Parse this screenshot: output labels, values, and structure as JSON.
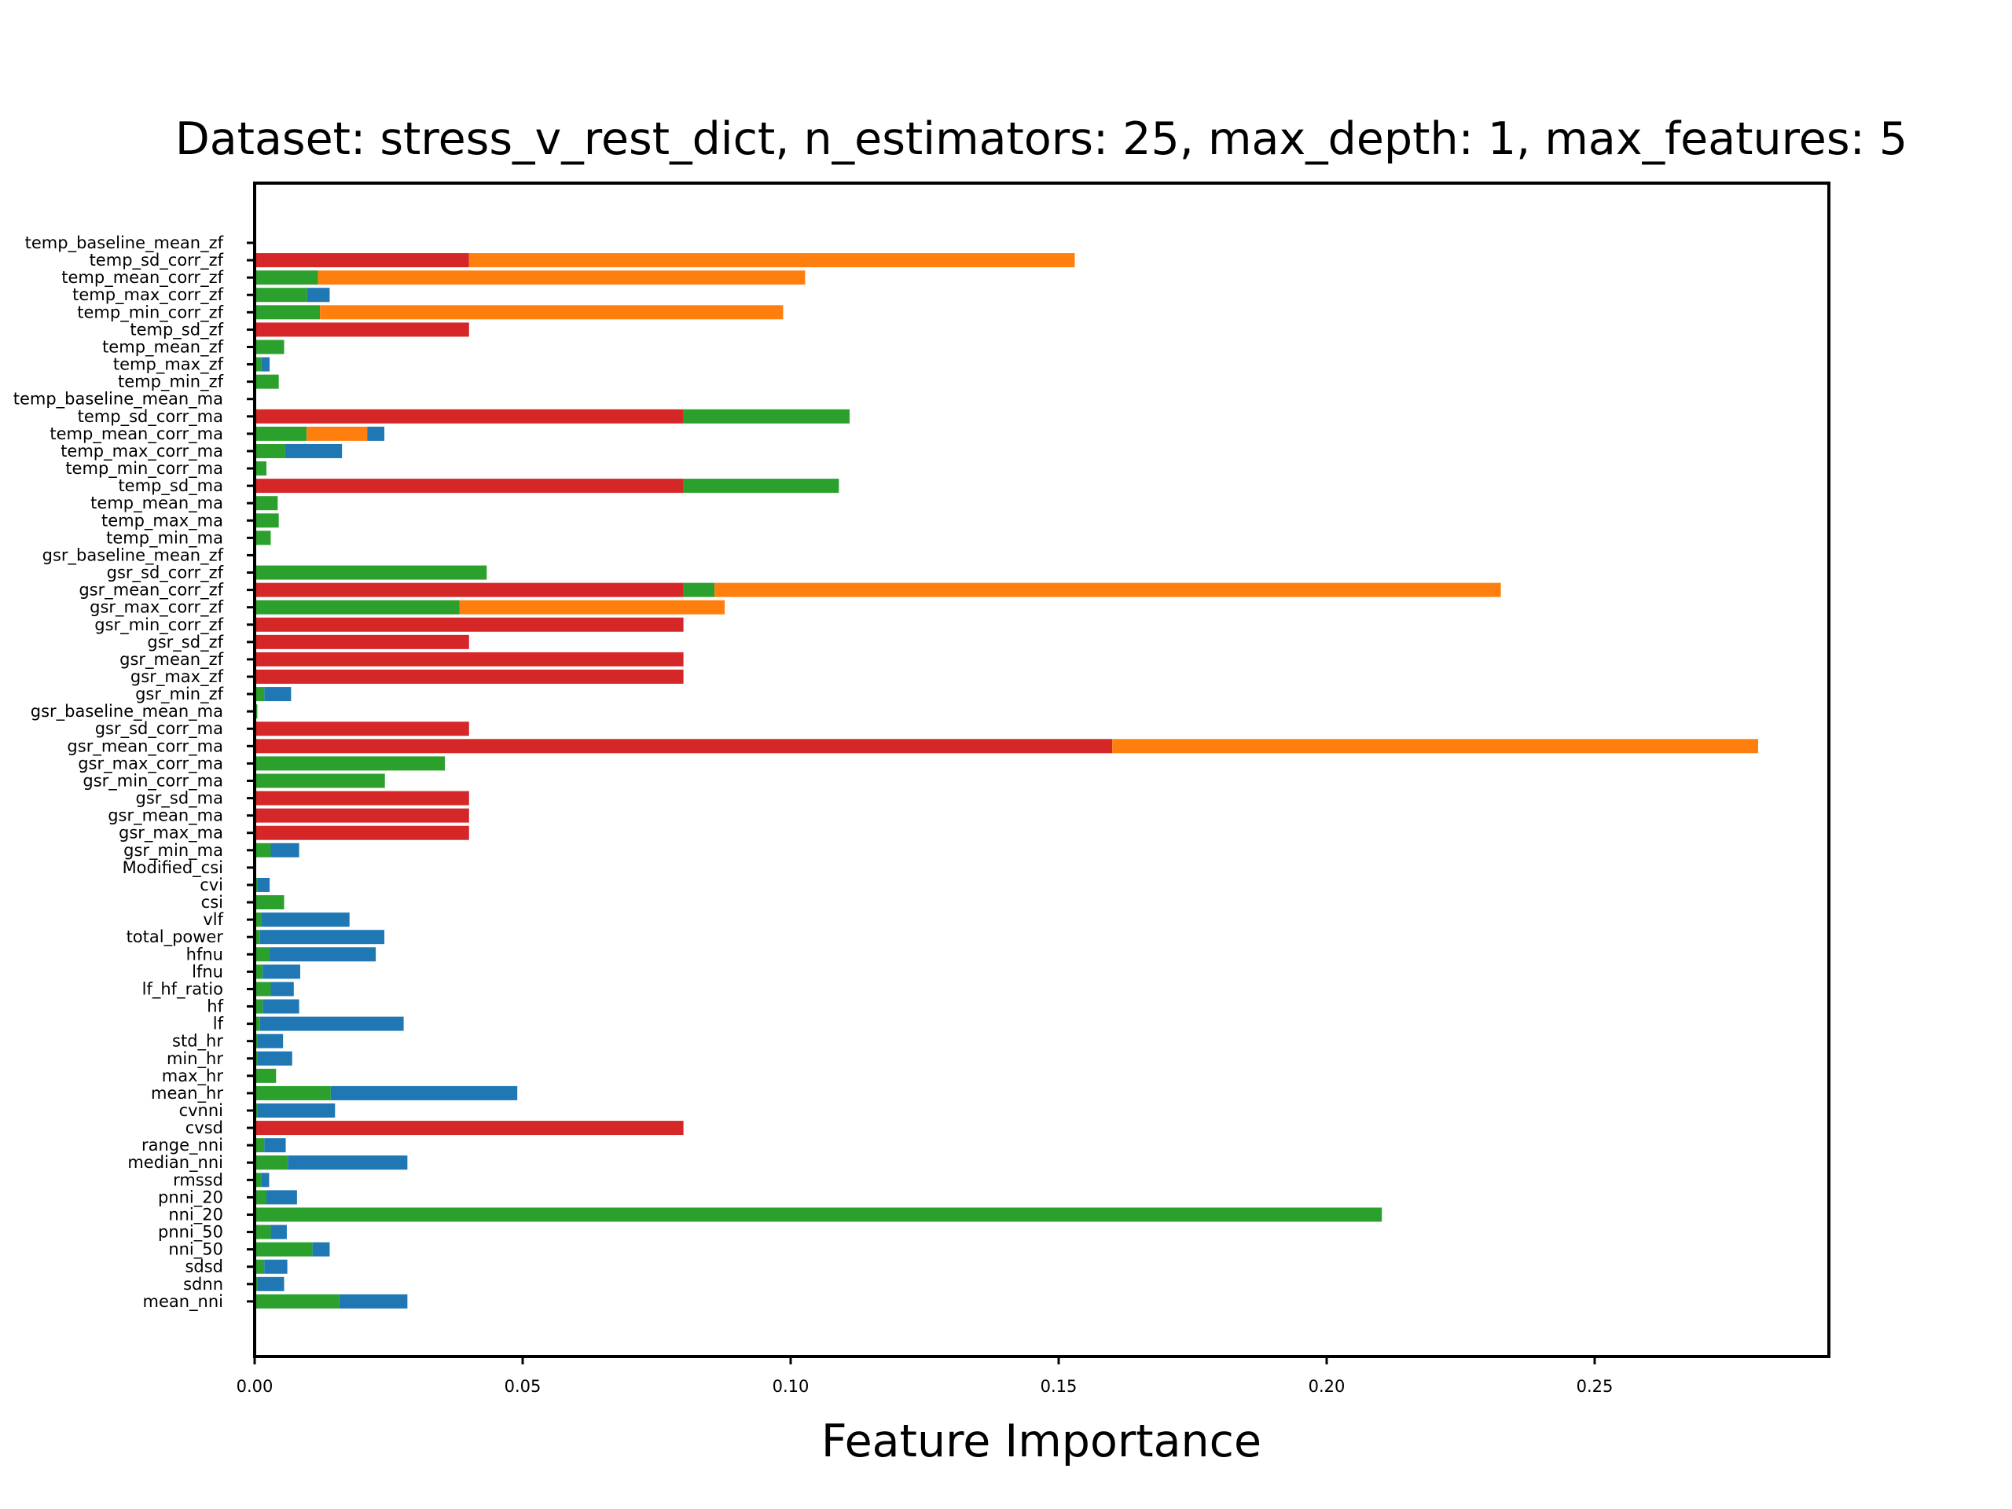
{
  "chart_data": {
    "type": "bar",
    "orientation": "horizontal",
    "stacked": true,
    "title": "Dataset: stress_v_rest_dict, n_estimators: 25, max_depth: 1, max_features: 5",
    "xlabel": "Feature Importance",
    "ylabel": "",
    "xlim": [
      0,
      0.294
    ],
    "xticks": [
      "0.00",
      "0.05",
      "0.10",
      "0.15",
      "0.20",
      "0.25"
    ],
    "grid": false,
    "colors": {
      "red": "#d62728",
      "green": "#2ca02c",
      "blue": "#1f77b4",
      "orange": "#ff7f0e"
    },
    "categories": [
      "temp_baseline_mean_zf",
      "temp_sd_corr_zf",
      "temp_mean_corr_zf",
      "temp_max_corr_zf",
      "temp_min_corr_zf",
      "temp_sd_zf",
      "temp_mean_zf",
      "temp_max_zf",
      "temp_min_zf",
      "temp_baseline_mean_ma",
      "temp_sd_corr_ma",
      "temp_mean_corr_ma",
      "temp_max_corr_ma",
      "temp_min_corr_ma",
      "temp_sd_ma",
      "temp_mean_ma",
      "temp_max_ma",
      "temp_min_ma",
      "gsr_baseline_mean_zf",
      "gsr_sd_corr_zf",
      "gsr_mean_corr_zf",
      "gsr_max_corr_zf",
      "gsr_min_corr_zf",
      "gsr_sd_zf",
      "gsr_mean_zf",
      "gsr_max_zf",
      "gsr_min_zf",
      "gsr_baseline_mean_ma",
      "gsr_sd_corr_ma",
      "gsr_mean_corr_ma",
      "gsr_max_corr_ma",
      "gsr_min_corr_ma",
      "gsr_sd_ma",
      "gsr_mean_ma",
      "gsr_max_ma",
      "gsr_min_ma",
      "Modified_csi",
      "cvi",
      "csi",
      "vlf",
      "total_power",
      "hfnu",
      "lfnu",
      "lf_hf_ratio",
      "hf",
      "lf",
      "std_hr",
      "min_hr",
      "max_hr",
      "mean_hr",
      "cvnni",
      "cvsd",
      "range_nni",
      "median_nni",
      "rmssd",
      "pnni_20",
      "nni_20",
      "pnni_50",
      "nni_50",
      "sdsd",
      "sdnn",
      "mean_nni"
    ],
    "stacks": [
      [],
      [
        [
          "red",
          0.04
        ],
        [
          "orange",
          0.113
        ]
      ],
      [
        [
          "green",
          0.0118
        ],
        [
          "orange",
          0.0909
        ]
      ],
      [
        [
          "green",
          0.0098
        ],
        [
          "blue",
          0.0042
        ]
      ],
      [
        [
          "green",
          0.0122
        ],
        [
          "orange",
          0.0864
        ]
      ],
      [
        [
          "red",
          0.04
        ]
      ],
      [
        [
          "green",
          0.0055
        ]
      ],
      [
        [
          "green",
          0.0013
        ],
        [
          "blue",
          0.0015
        ]
      ],
      [
        [
          "green",
          0.0045
        ]
      ],
      [],
      [
        [
          "red",
          0.08
        ],
        [
          "green",
          0.031
        ]
      ],
      [
        [
          "green",
          0.0097
        ],
        [
          "orange",
          0.0113
        ],
        [
          "blue",
          0.0032
        ]
      ],
      [
        [
          "green",
          0.0057
        ],
        [
          "blue",
          0.0106
        ]
      ],
      [
        [
          "green",
          0.0022
        ]
      ],
      [
        [
          "red",
          0.08
        ],
        [
          "green",
          0.029
        ]
      ],
      [
        [
          "green",
          0.0043
        ]
      ],
      [
        [
          "green",
          0.0045
        ]
      ],
      [
        [
          "green",
          0.003
        ]
      ],
      [],
      [
        [
          "green",
          0.0433
        ]
      ],
      [
        [
          "red",
          0.08
        ],
        [
          "green",
          0.0058
        ],
        [
          "orange",
          0.1467
        ]
      ],
      [
        [
          "green",
          0.0382
        ],
        [
          "orange",
          0.0495
        ]
      ],
      [
        [
          "red",
          0.08
        ]
      ],
      [
        [
          "red",
          0.04
        ]
      ],
      [
        [
          "red",
          0.08
        ]
      ],
      [
        [
          "red",
          0.08
        ]
      ],
      [
        [
          "green",
          0.0018
        ],
        [
          "blue",
          0.005
        ]
      ],
      [
        [
          "green",
          0.0005
        ]
      ],
      [
        [
          "red",
          0.04
        ]
      ],
      [
        [
          "red",
          0.16
        ],
        [
          "orange",
          0.1205
        ]
      ],
      [
        [
          "green",
          0.0355
        ]
      ],
      [
        [
          "green",
          0.0243
        ]
      ],
      [
        [
          "red",
          0.04
        ]
      ],
      [
        [
          "red",
          0.04
        ]
      ],
      [
        [
          "red",
          0.04
        ]
      ],
      [
        [
          "green",
          0.003
        ],
        [
          "blue",
          0.0053
        ]
      ],
      [],
      [
        [
          "green",
          0.0005
        ],
        [
          "blue",
          0.0023
        ]
      ],
      [
        [
          "green",
          0.0055
        ]
      ],
      [
        [
          "green",
          0.0012
        ],
        [
          "blue",
          0.0165
        ]
      ],
      [
        [
          "green",
          0.001
        ],
        [
          "blue",
          0.0232
        ]
      ],
      [
        [
          "green",
          0.0028
        ],
        [
          "blue",
          0.0198
        ]
      ],
      [
        [
          "green",
          0.0015
        ],
        [
          "blue",
          0.007
        ]
      ],
      [
        [
          "green",
          0.003
        ],
        [
          "blue",
          0.0043
        ]
      ],
      [
        [
          "green",
          0.0015
        ],
        [
          "blue",
          0.0068
        ]
      ],
      [
        [
          "green",
          0.001
        ],
        [
          "blue",
          0.0268
        ]
      ],
      [
        [
          "green",
          0.0005
        ],
        [
          "blue",
          0.0048
        ]
      ],
      [
        [
          "green",
          0.0005
        ],
        [
          "blue",
          0.0065
        ]
      ],
      [
        [
          "green",
          0.004
        ]
      ],
      [
        [
          "green",
          0.0142
        ],
        [
          "blue",
          0.0348
        ]
      ],
      [
        [
          "green",
          0.0005
        ],
        [
          "blue",
          0.0145
        ]
      ],
      [
        [
          "red",
          0.08
        ]
      ],
      [
        [
          "green",
          0.0018
        ],
        [
          "blue",
          0.004
        ]
      ],
      [
        [
          "green",
          0.0062
        ],
        [
          "blue",
          0.0223
        ]
      ],
      [
        [
          "green",
          0.0012
        ],
        [
          "blue",
          0.0015
        ]
      ],
      [
        [
          "green",
          0.0022
        ],
        [
          "blue",
          0.0057
        ]
      ],
      [
        [
          "green",
          0.2103
        ]
      ],
      [
        [
          "green",
          0.003
        ],
        [
          "blue",
          0.003
        ]
      ],
      [
        [
          "green",
          0.0108
        ],
        [
          "blue",
          0.0032
        ]
      ],
      [
        [
          "green",
          0.0018
        ],
        [
          "blue",
          0.0043
        ]
      ],
      [
        [
          "green",
          0.0005
        ],
        [
          "blue",
          0.005
        ]
      ],
      [
        [
          "green",
          0.0158
        ],
        [
          "blue",
          0.0127
        ]
      ]
    ]
  }
}
